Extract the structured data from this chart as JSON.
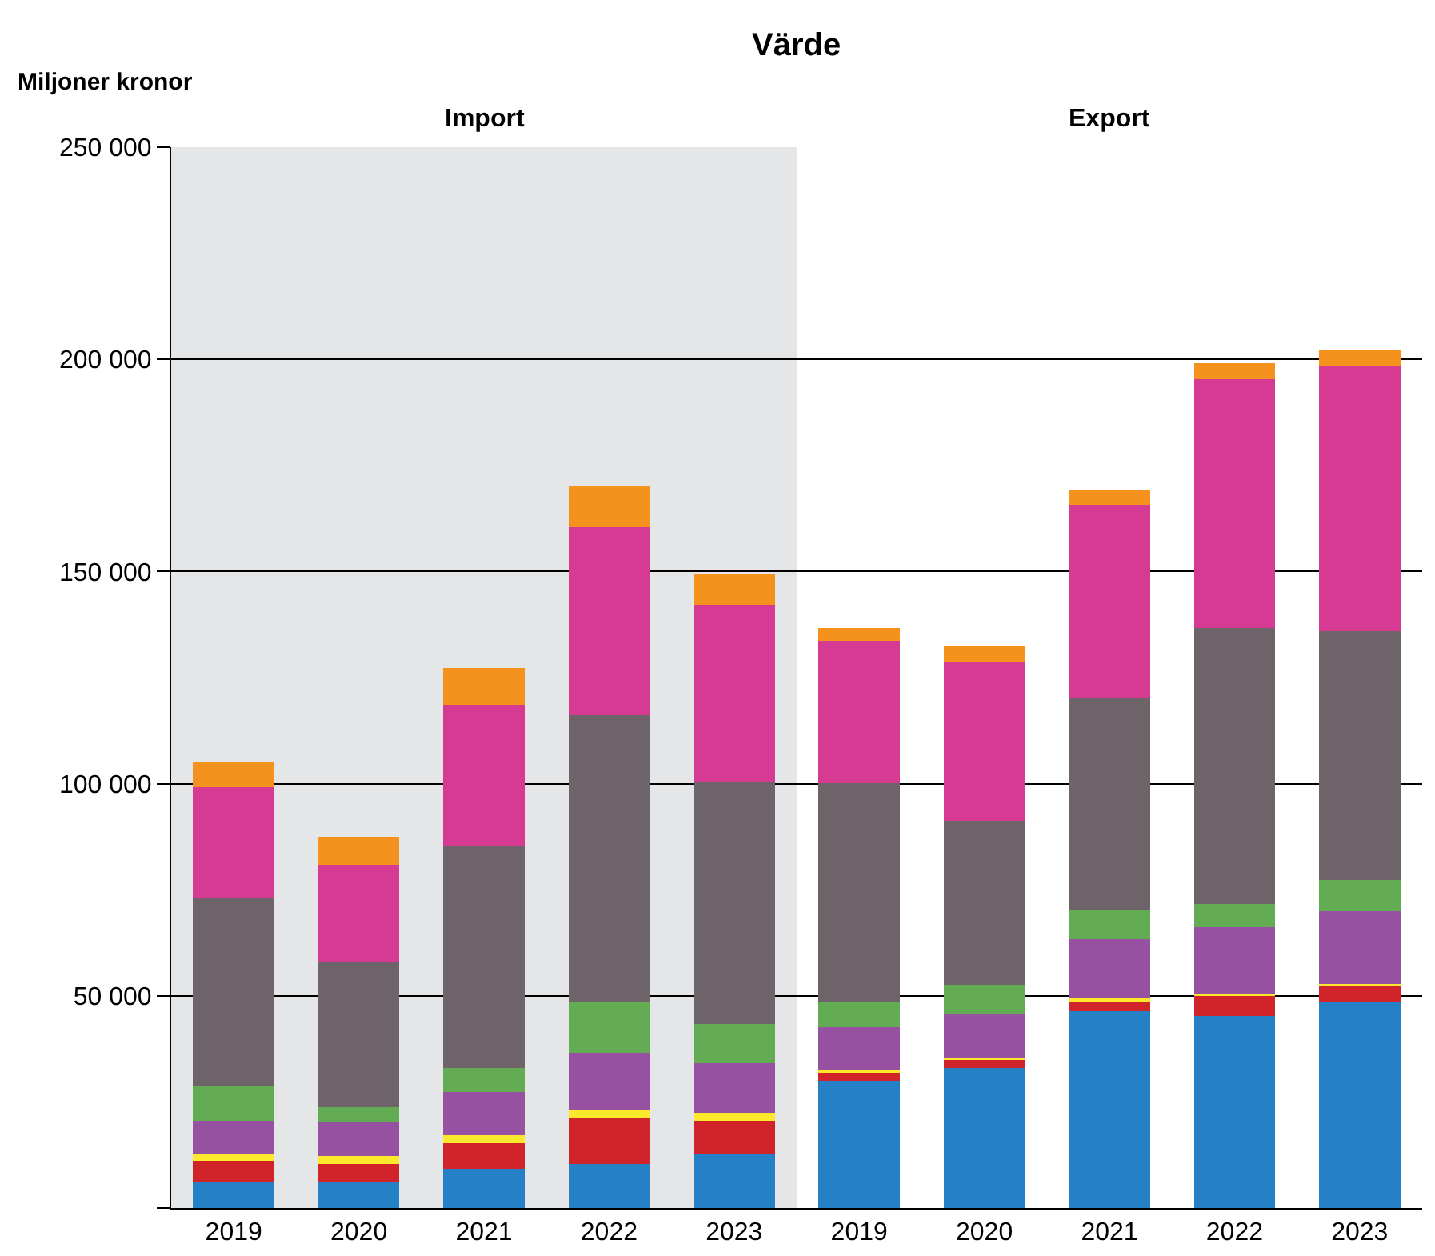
{
  "chart_data": {
    "type": "bar",
    "title": "Värde",
    "ylabel": "Miljoner kronor",
    "stacked": true,
    "grid": "y",
    "categories": [
      "2019",
      "2020",
      "2021",
      "2022",
      "2023",
      "2019",
      "2020",
      "2021",
      "2022",
      "2023"
    ],
    "series": [
      {
        "color": "#2680c6",
        "values": [
          6000,
          6000,
          9200,
          10400,
          12800,
          30000,
          33000,
          46400,
          45200,
          48700
        ]
      },
      {
        "color": "#d1232a",
        "values": [
          5100,
          4300,
          6000,
          10900,
          7800,
          1800,
          1900,
          2200,
          4700,
          3500
        ]
      },
      {
        "color": "#fde92c",
        "values": [
          1700,
          1900,
          1900,
          1800,
          1900,
          700,
          600,
          800,
          700,
          600
        ]
      },
      {
        "color": "#9652a1",
        "values": [
          7800,
          7900,
          10200,
          13400,
          11600,
          10200,
          10100,
          13900,
          15600,
          17100
        ]
      },
      {
        "color": "#63ac53",
        "values": [
          8100,
          3700,
          5700,
          12200,
          9200,
          6000,
          7000,
          6800,
          5500,
          7400
        ]
      },
      {
        "color": "#6d6368",
        "values": [
          44300,
          34100,
          52200,
          67400,
          57000,
          51400,
          38600,
          50000,
          65000,
          58600
        ]
      },
      {
        "color": "#d63a93",
        "values": [
          26100,
          23000,
          33300,
          44400,
          41800,
          33500,
          37500,
          45600,
          58700,
          62400
        ]
      },
      {
        "color": "#f5921e",
        "values": [
          6100,
          6600,
          8700,
          9700,
          7500,
          3000,
          3700,
          3700,
          3700,
          3800
        ]
      }
    ],
    "ylim": [
      0,
      250000
    ],
    "yticks": [
      {
        "value": 0,
        "label": null
      },
      {
        "value": 50000,
        "label": "50 000"
      },
      {
        "value": 100000,
        "label": "100 000"
      },
      {
        "value": 150000,
        "label": "150 000"
      },
      {
        "value": 200000,
        "label": "200 000"
      },
      {
        "value": 250000,
        "label": "250 000"
      }
    ],
    "bands": [
      {
        "axis": "x",
        "from": "2019",
        "to": "2023",
        "label": "Import",
        "color": "#e5e6e8"
      }
    ],
    "annotations": [
      "Export"
    ]
  }
}
